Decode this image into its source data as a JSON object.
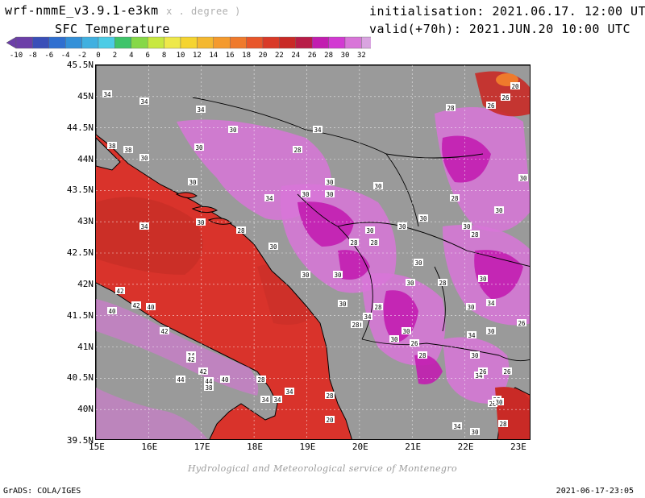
{
  "header": {
    "model_name": "wrf-nmmE_v3.9.1-e3km",
    "model_suffix": "x . degree )",
    "variable": "SFC Temperature",
    "initialisation": "initialisation: 2021.06.17. 12:00 UTC",
    "valid": "valid(+70h): 2021.JUN.20 10:00 UTC"
  },
  "colorbar": {
    "labels": [
      "-10",
      "-8",
      "-6",
      "-4",
      "-2",
      "0",
      "2",
      "4",
      "6",
      "8",
      "10",
      "12",
      "14",
      "16",
      "18",
      "20",
      "22",
      "24",
      "26",
      "28",
      "30",
      "32"
    ],
    "colors": [
      "#6c3fa8",
      "#3a4fb8",
      "#2f6fd0",
      "#3390d8",
      "#40b0e0",
      "#4ccce6",
      "#3fc46a",
      "#86d848",
      "#c8e840",
      "#eee84a",
      "#f5d430",
      "#f4b830",
      "#f49a2e",
      "#ef7a2c",
      "#e8562a",
      "#d93a28",
      "#c92a26",
      "#b81d48",
      "#c21db0",
      "#d23ad2",
      "#d875d8",
      "#d9a4e0"
    ]
  },
  "map": {
    "lat_labels": [
      "45.5N",
      "45N",
      "44.5N",
      "44N",
      "43.5N",
      "43N",
      "42.5N",
      "42N",
      "41.5N",
      "41N",
      "40.5N",
      "40N",
      "39.5N"
    ],
    "lon_labels": [
      "15E",
      "16E",
      "17E",
      "18E",
      "19E",
      "20E",
      "21E",
      "22E",
      "23E"
    ],
    "contour_labels": [
      "34",
      "34",
      "34",
      "34",
      "30",
      "30",
      "30",
      "28",
      "30",
      "34",
      "30",
      "30",
      "30",
      "30",
      "28",
      "30",
      "28",
      "28",
      "30",
      "30",
      "34",
      "30",
      "28",
      "30",
      "30",
      "30",
      "28",
      "30",
      "30",
      "28",
      "26",
      "30",
      "28",
      "30",
      "34",
      "26",
      "34",
      "38",
      "38",
      "42",
      "42",
      "40",
      "40",
      "42",
      "34",
      "42",
      "44",
      "42",
      "44",
      "38",
      "40",
      "28",
      "34",
      "34",
      "34",
      "30",
      "30",
      "28",
      "30",
      "30",
      "30",
      "28",
      "34",
      "30",
      "34",
      "26",
      "28",
      "26",
      "20",
      "20",
      "26",
      "28",
      "30",
      "30",
      "30",
      "30",
      "26",
      "34",
      "30",
      "28",
      "26",
      "28"
    ],
    "colors": {
      "sea": "#d9332b",
      "sea_dark": "#bb2a24",
      "land_grey": "#9a9a9a",
      "warm_magenta": "#d23ad2",
      "light_violet": "#d875d8",
      "deep_magenta": "#c21db0",
      "hot_red": "#c92a26",
      "orange": "#ef7a2c"
    }
  },
  "footer": {
    "credit": "Hydrological and Meteorological service of Montenegro",
    "software": "GrADS: COLA/IGES",
    "timestamp": "2021-06-17-23:05"
  }
}
